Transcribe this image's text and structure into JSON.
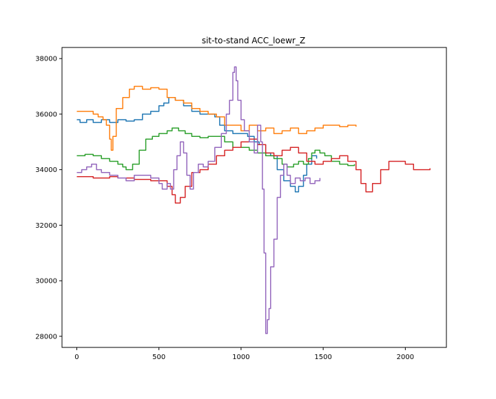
{
  "chart_data": {
    "type": "line",
    "title": "sit-to-stand ACC_loewr_Z",
    "xlabel": "",
    "ylabel": "",
    "xlim": [
      -90,
      2250
    ],
    "ylim": [
      27600,
      38400
    ],
    "xticks": [
      0,
      500,
      1000,
      1500,
      2000
    ],
    "yticks": [
      28000,
      30000,
      32000,
      34000,
      36000,
      38000
    ],
    "grid": false,
    "legend": "none",
    "series": [
      {
        "color": "#1f77b4",
        "x": [
          0,
          20,
          60,
          100,
          150,
          200,
          250,
          300,
          350,
          400,
          450,
          500,
          530,
          560,
          600,
          650,
          700,
          750,
          800,
          840,
          870,
          900,
          950,
          1000,
          1040,
          1080,
          1110,
          1150,
          1180,
          1220,
          1260,
          1300,
          1330,
          1350,
          1380,
          1400,
          1430,
          1460
        ],
        "y": [
          35800,
          35700,
          35800,
          35700,
          35800,
          35700,
          35800,
          35750,
          35800,
          36000,
          36100,
          36300,
          36400,
          36600,
          36500,
          36300,
          36100,
          36000,
          36000,
          35900,
          35600,
          35400,
          35300,
          35300,
          35200,
          35000,
          34900,
          34600,
          34500,
          34000,
          33600,
          33400,
          33200,
          33400,
          33800,
          34200,
          34500,
          34400
        ]
      },
      {
        "color": "#ff7f0e",
        "x": [
          0,
          50,
          100,
          130,
          160,
          180,
          200,
          210,
          220,
          240,
          280,
          320,
          350,
          400,
          450,
          500,
          550,
          600,
          650,
          700,
          750,
          800,
          850,
          900,
          950,
          1000,
          1050,
          1100,
          1150,
          1200,
          1250,
          1300,
          1350,
          1400,
          1450,
          1500,
          1550,
          1600,
          1650,
          1700
        ],
        "y": [
          36100,
          36100,
          36000,
          35900,
          35800,
          35600,
          35100,
          34700,
          35200,
          36200,
          36600,
          36900,
          37000,
          36900,
          36950,
          36900,
          36600,
          36500,
          36400,
          36200,
          36100,
          36000,
          35900,
          35600,
          35600,
          35400,
          35600,
          35400,
          35500,
          35300,
          35400,
          35500,
          35300,
          35400,
          35500,
          35600,
          35600,
          35550,
          35600,
          35550
        ]
      },
      {
        "color": "#2ca02c",
        "x": [
          0,
          50,
          100,
          150,
          200,
          250,
          280,
          300,
          340,
          380,
          420,
          460,
          500,
          550,
          580,
          620,
          660,
          700,
          750,
          800,
          850,
          900,
          950,
          1000,
          1050,
          1100,
          1150,
          1200,
          1250,
          1280,
          1320,
          1350,
          1380,
          1410,
          1430,
          1450,
          1480,
          1510,
          1550,
          1600,
          1650,
          1690
        ],
        "y": [
          34500,
          34550,
          34500,
          34400,
          34300,
          34200,
          34100,
          34000,
          34200,
          34700,
          35100,
          35200,
          35300,
          35400,
          35500,
          35400,
          35300,
          35200,
          35150,
          35200,
          35200,
          35000,
          34800,
          34800,
          34700,
          34600,
          34500,
          34400,
          34200,
          34100,
          34200,
          34300,
          34200,
          34400,
          34600,
          34700,
          34600,
          34500,
          34300,
          34200,
          34150,
          34200
        ]
      },
      {
        "color": "#d62728",
        "x": [
          0,
          50,
          100,
          150,
          200,
          250,
          300,
          350,
          400,
          450,
          500,
          550,
          580,
          600,
          630,
          660,
          700,
          750,
          800,
          850,
          900,
          950,
          1000,
          1050,
          1100,
          1150,
          1200,
          1250,
          1300,
          1350,
          1400,
          1450,
          1500,
          1550,
          1600,
          1650,
          1700,
          1730,
          1760,
          1800,
          1850,
          1900,
          1950,
          2000,
          2050,
          2100,
          2150
        ],
        "y": [
          33750,
          33750,
          33700,
          33700,
          33750,
          33700,
          33700,
          33650,
          33650,
          33600,
          33600,
          33400,
          33100,
          32800,
          33000,
          33400,
          33900,
          34000,
          34200,
          34500,
          34700,
          34800,
          35000,
          35100,
          34900,
          34600,
          34500,
          34700,
          34800,
          34600,
          34300,
          34200,
          34300,
          34400,
          34500,
          34300,
          34000,
          33500,
          33200,
          33500,
          34000,
          34300,
          34300,
          34200,
          34000,
          34000,
          34050
        ]
      },
      {
        "color": "#9467bd",
        "x": [
          0,
          30,
          60,
          90,
          120,
          150,
          200,
          250,
          300,
          350,
          400,
          450,
          500,
          520,
          550,
          570,
          590,
          610,
          630,
          650,
          670,
          690,
          710,
          740,
          770,
          800,
          840,
          880,
          910,
          930,
          950,
          960,
          970,
          980,
          1000,
          1020,
          1050,
          1080,
          1100,
          1120,
          1130,
          1140,
          1150,
          1160,
          1170,
          1180,
          1200,
          1220,
          1240,
          1260,
          1280,
          1300,
          1330,
          1360,
          1390,
          1420,
          1450,
          1480
        ],
        "y": [
          33900,
          34000,
          34100,
          34200,
          34000,
          33900,
          33800,
          33700,
          33600,
          33800,
          33800,
          33700,
          33500,
          33300,
          33500,
          33300,
          34000,
          34500,
          35000,
          34600,
          33800,
          33300,
          33900,
          34200,
          34100,
          34300,
          34800,
          35300,
          36000,
          36500,
          37500,
          37700,
          37200,
          36500,
          35800,
          35400,
          35000,
          34600,
          35600,
          35000,
          33300,
          31000,
          28100,
          28600,
          29000,
          30500,
          31500,
          33000,
          33800,
          34200,
          33800,
          33500,
          33700,
          33600,
          33700,
          33500,
          33600,
          33700
        ]
      }
    ]
  }
}
